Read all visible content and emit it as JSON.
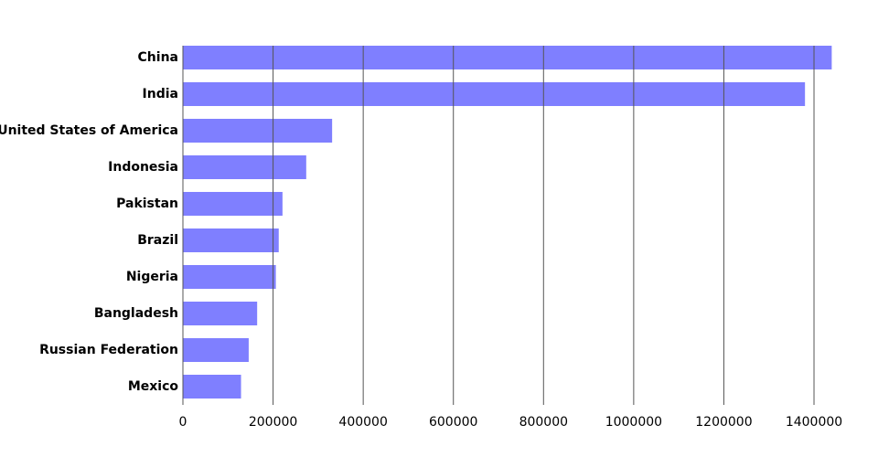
{
  "chart_data": {
    "type": "bar",
    "orientation": "horizontal",
    "categories": [
      "China",
      "India",
      "United States of America",
      "Indonesia",
      "Pakistan",
      "Brazil",
      "Nigeria",
      "Bangladesh",
      "Russian Federation",
      "Mexico"
    ],
    "values": [
      1439324,
      1380004,
      331003,
      273524,
      220892,
      212559,
      206140,
      164689,
      145934,
      128933
    ],
    "color": "#7f7fff",
    "xlim": [
      0,
      1439324
    ],
    "xticks": [
      0,
      200000,
      400000,
      600000,
      800000,
      1000000,
      1200000,
      1400000
    ],
    "grid": true
  }
}
